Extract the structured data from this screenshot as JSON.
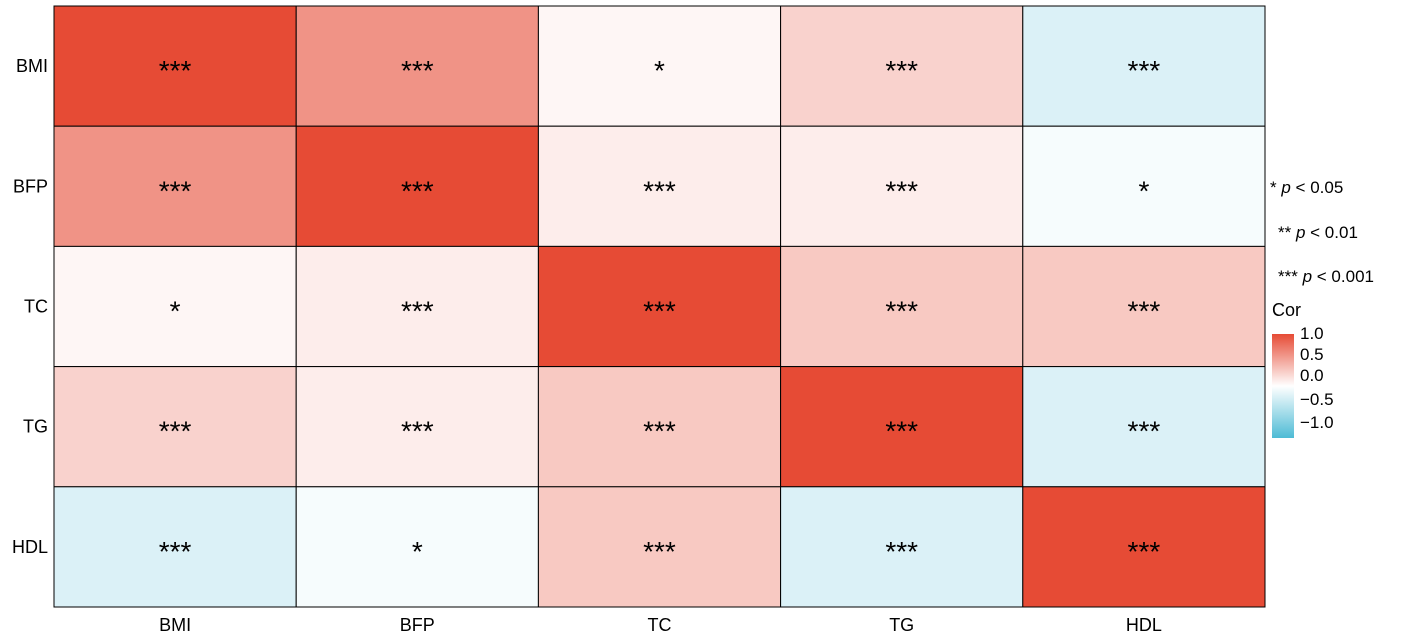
{
  "chart_data": {
    "type": "heatmap",
    "title": "",
    "variables": [
      "BMI",
      "BFP",
      "TC",
      "TG",
      "HDL"
    ],
    "matrix": [
      [
        1.0,
        0.6,
        0.05,
        0.25,
        -0.2
      ],
      [
        0.6,
        1.0,
        0.1,
        0.1,
        -0.05
      ],
      [
        0.05,
        0.1,
        1.0,
        0.3,
        0.3
      ],
      [
        0.25,
        0.1,
        0.3,
        1.0,
        -0.2
      ],
      [
        -0.2,
        -0.05,
        0.3,
        -0.2,
        1.0
      ]
    ],
    "labels": [
      [
        "***",
        "***",
        "*",
        "***",
        "***"
      ],
      [
        "***",
        "***",
        "***",
        "***",
        "*"
      ],
      [
        "*",
        "***",
        "***",
        "***",
        "***"
      ],
      [
        "***",
        "***",
        "***",
        "***",
        "***"
      ],
      [
        "***",
        "*",
        "***",
        "***",
        "***"
      ]
    ],
    "legend": {
      "title": "Cor",
      "ticks": [
        "1.0",
        "0.5",
        "0.0",
        "−0.5",
        "−1.0"
      ],
      "colors": {
        "high": "#e64b35",
        "mid": "#ffffff",
        "low": "#4dbbd5"
      }
    },
    "significance": [
      {
        "stars": "*",
        "p": "p",
        "rest": " < 0.05"
      },
      {
        "stars": "**",
        "p": "p",
        "rest": " < 0.01"
      },
      {
        "stars": "***",
        "p": "p",
        "rest": " < 0.001"
      }
    ]
  }
}
